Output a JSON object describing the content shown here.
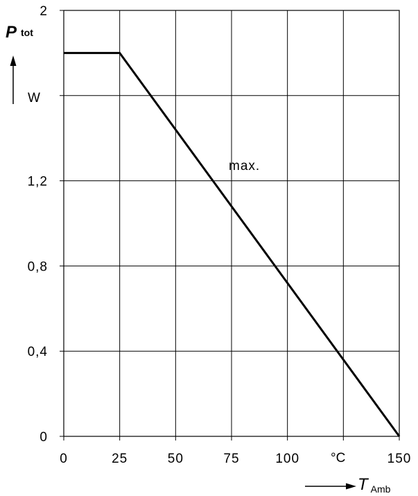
{
  "chart_data": {
    "type": "line",
    "ylabel_symbol": "P",
    "ylabel_subscript": "tot",
    "yunit": "W",
    "xlabel_symbol": "T",
    "xlabel_subscript": "Amb",
    "xunit": "°C",
    "xlim": [
      0,
      150
    ],
    "ylim": [
      0,
      2
    ],
    "grid": true,
    "x_ticks": [
      0,
      25,
      50,
      75,
      100,
      125,
      150
    ],
    "x_tick_labels": [
      "0",
      "25",
      "50",
      "75",
      "100",
      "",
      "150"
    ],
    "y_ticks": [
      0,
      0.4,
      0.8,
      1.2,
      1.6,
      2
    ],
    "y_tick_labels": [
      "0",
      "0,4",
      "0,8",
      "1,2",
      "",
      "2"
    ],
    "series": [
      {
        "name": "max.",
        "x": [
          0,
          25,
          150
        ],
        "y": [
          1.8,
          1.8,
          0
        ]
      }
    ]
  }
}
